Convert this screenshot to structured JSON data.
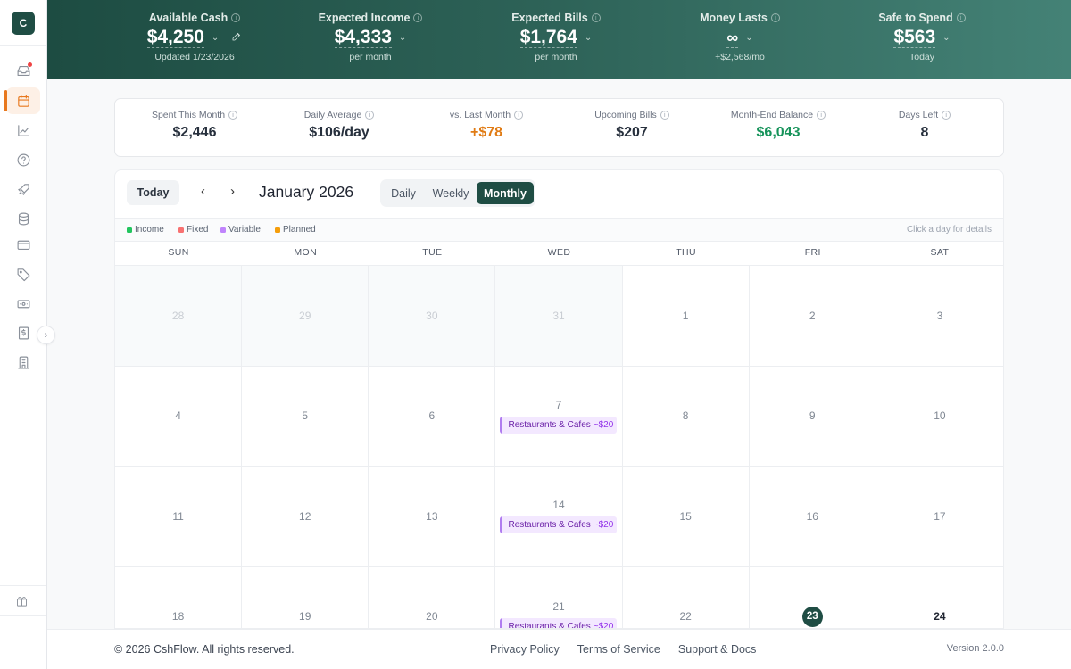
{
  "app": {
    "logo_letter": "C"
  },
  "sidebar": {
    "items": [
      {
        "name": "inbox",
        "active": false,
        "notification": true
      },
      {
        "name": "calendar",
        "active": true
      },
      {
        "name": "analytics",
        "active": false
      },
      {
        "name": "help",
        "active": false
      },
      {
        "name": "launch",
        "active": false
      },
      {
        "name": "database",
        "active": false
      },
      {
        "name": "cards",
        "active": false
      },
      {
        "name": "tags",
        "active": false
      },
      {
        "name": "cash",
        "active": false
      },
      {
        "name": "receipts",
        "active": false
      },
      {
        "name": "institutions",
        "active": false
      }
    ],
    "collapse_glyph": "›",
    "bottom_item": "gift"
  },
  "header": {
    "metrics": [
      {
        "label": "Available Cash",
        "value": "$4,250",
        "sub": "Updated 1/23/2026",
        "editable": true
      },
      {
        "label": "Expected Income",
        "value": "$4,333",
        "sub": "per month"
      },
      {
        "label": "Expected Bills",
        "value": "$1,764",
        "sub": "per month"
      },
      {
        "label": "Money Lasts",
        "value": "∞",
        "sub": "+$2,568/mo"
      },
      {
        "label": "Safe to Spend",
        "value": "$563",
        "sub": "Today"
      }
    ],
    "chevron": "⌄"
  },
  "stats": [
    {
      "label": "Spent This Month",
      "value": "$2,446",
      "color": "#27303d"
    },
    {
      "label": "Daily Average",
      "value": "$106/day",
      "color": "#27303d"
    },
    {
      "label": "vs. Last Month",
      "value": "+$78",
      "color": "#e07b14"
    },
    {
      "label": "Upcoming Bills",
      "value": "$207",
      "color": "#27303d"
    },
    {
      "label": "Month-End Balance",
      "value": "$6,043",
      "color": "#16935a"
    },
    {
      "label": "Days Left",
      "value": "8",
      "color": "#27303d"
    }
  ],
  "calendar": {
    "today_label": "Today",
    "prev": "‹",
    "next": "›",
    "title": "January 2026",
    "views": [
      {
        "label": "Daily",
        "selected": false
      },
      {
        "label": "Weekly",
        "selected": false
      },
      {
        "label": "Monthly",
        "selected": true
      }
    ],
    "legend": [
      {
        "label": "Income",
        "color": "#22c55e"
      },
      {
        "label": "Fixed",
        "color": "#f87171"
      },
      {
        "label": "Variable",
        "color": "#c084fc"
      },
      {
        "label": "Planned",
        "color": "#f59e0b"
      }
    ],
    "hint": "Click a day for details",
    "weekdays": [
      "SUN",
      "MON",
      "TUE",
      "WED",
      "THU",
      "FRI",
      "SAT"
    ],
    "days": [
      {
        "n": "28",
        "out": true
      },
      {
        "n": "29",
        "out": true
      },
      {
        "n": "30",
        "out": true
      },
      {
        "n": "31",
        "out": true
      },
      {
        "n": "1"
      },
      {
        "n": "2"
      },
      {
        "n": "3"
      },
      {
        "n": "4"
      },
      {
        "n": "5"
      },
      {
        "n": "6"
      },
      {
        "n": "7",
        "event": {
          "label": "Restaurants & Cafes",
          "amount": "~$20"
        }
      },
      {
        "n": "8"
      },
      {
        "n": "9"
      },
      {
        "n": "10"
      },
      {
        "n": "11"
      },
      {
        "n": "12"
      },
      {
        "n": "13"
      },
      {
        "n": "14",
        "event": {
          "label": "Restaurants & Cafes",
          "amount": "~$20"
        }
      },
      {
        "n": "15"
      },
      {
        "n": "16"
      },
      {
        "n": "17"
      },
      {
        "n": "18"
      },
      {
        "n": "19"
      },
      {
        "n": "20"
      },
      {
        "n": "21",
        "event": {
          "label": "Restaurants & Cafes",
          "amount": "~$20"
        }
      },
      {
        "n": "22"
      },
      {
        "n": "23",
        "today": true
      },
      {
        "n": "24",
        "future": true
      }
    ]
  },
  "footer": {
    "copyright": "© 2026 CshFlow. All rights reserved.",
    "links": [
      "Privacy Policy",
      "Terms of Service",
      "Support & Docs"
    ],
    "version": "Version 2.0.0"
  }
}
